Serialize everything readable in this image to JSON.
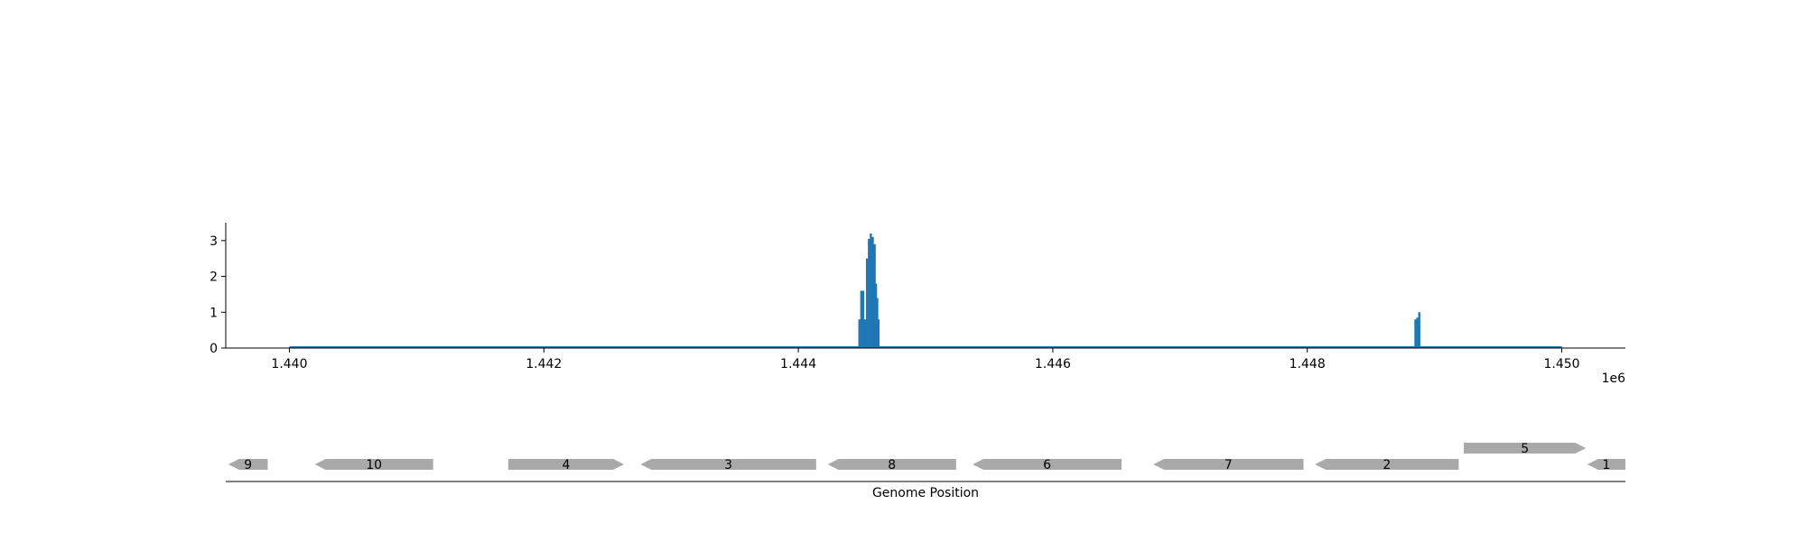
{
  "chart_data": {
    "type": "bar",
    "xlabel": "Genome Position",
    "x_offset_label": "1e6",
    "xlim": [
      1439500,
      1450500
    ],
    "ylim": [
      0,
      3.5
    ],
    "x_ticks": [
      1440000,
      1442000,
      1444000,
      1446000,
      1448000,
      1450000
    ],
    "x_tick_labels": [
      "1.440",
      "1.442",
      "1.444",
      "1.446",
      "1.448",
      "1.450"
    ],
    "y_ticks": [
      0,
      1,
      2,
      3
    ],
    "y_tick_labels": [
      "0",
      "1",
      "2",
      "3"
    ],
    "baseline_range": [
      1440000,
      1450000
    ],
    "bar_color": "#1f77b4",
    "gene_color": "#a9a9a9",
    "coverage": [
      {
        "x": 1444480,
        "y": 0.8
      },
      {
        "x": 1444495,
        "y": 1.6
      },
      {
        "x": 1444510,
        "y": 1.6
      },
      {
        "x": 1444525,
        "y": 0.8
      },
      {
        "x": 1444540,
        "y": 2.5
      },
      {
        "x": 1444555,
        "y": 3.05
      },
      {
        "x": 1444570,
        "y": 3.2
      },
      {
        "x": 1444585,
        "y": 3.1
      },
      {
        "x": 1444600,
        "y": 2.9
      },
      {
        "x": 1444610,
        "y": 1.8
      },
      {
        "x": 1444620,
        "y": 1.4
      },
      {
        "x": 1444630,
        "y": 0.8
      },
      {
        "x": 1448850,
        "y": 0.8
      },
      {
        "x": 1448865,
        "y": 0.85
      },
      {
        "x": 1448880,
        "y": 1.0
      }
    ],
    "genes": [
      {
        "label": "9",
        "start": 1439520,
        "end": 1439830,
        "strand": "-",
        "row": 0
      },
      {
        "label": "10",
        "start": 1440200,
        "end": 1441130,
        "strand": "-",
        "row": 0
      },
      {
        "label": "4",
        "start": 1441720,
        "end": 1442630,
        "strand": "+",
        "row": 0
      },
      {
        "label": "3",
        "start": 1442760,
        "end": 1444140,
        "strand": "-",
        "row": 0
      },
      {
        "label": "8",
        "start": 1444230,
        "end": 1445240,
        "strand": "-",
        "row": 0
      },
      {
        "label": "6",
        "start": 1445370,
        "end": 1446540,
        "strand": "-",
        "row": 0
      },
      {
        "label": "7",
        "start": 1446790,
        "end": 1447970,
        "strand": "-",
        "row": 0
      },
      {
        "label": "2",
        "start": 1448060,
        "end": 1449190,
        "strand": "-",
        "row": 0
      },
      {
        "label": "5",
        "start": 1449230,
        "end": 1450190,
        "strand": "+",
        "row": 1
      },
      {
        "label": "1",
        "start": 1450200,
        "end": 1450500,
        "strand": "-",
        "row": 0
      }
    ]
  }
}
